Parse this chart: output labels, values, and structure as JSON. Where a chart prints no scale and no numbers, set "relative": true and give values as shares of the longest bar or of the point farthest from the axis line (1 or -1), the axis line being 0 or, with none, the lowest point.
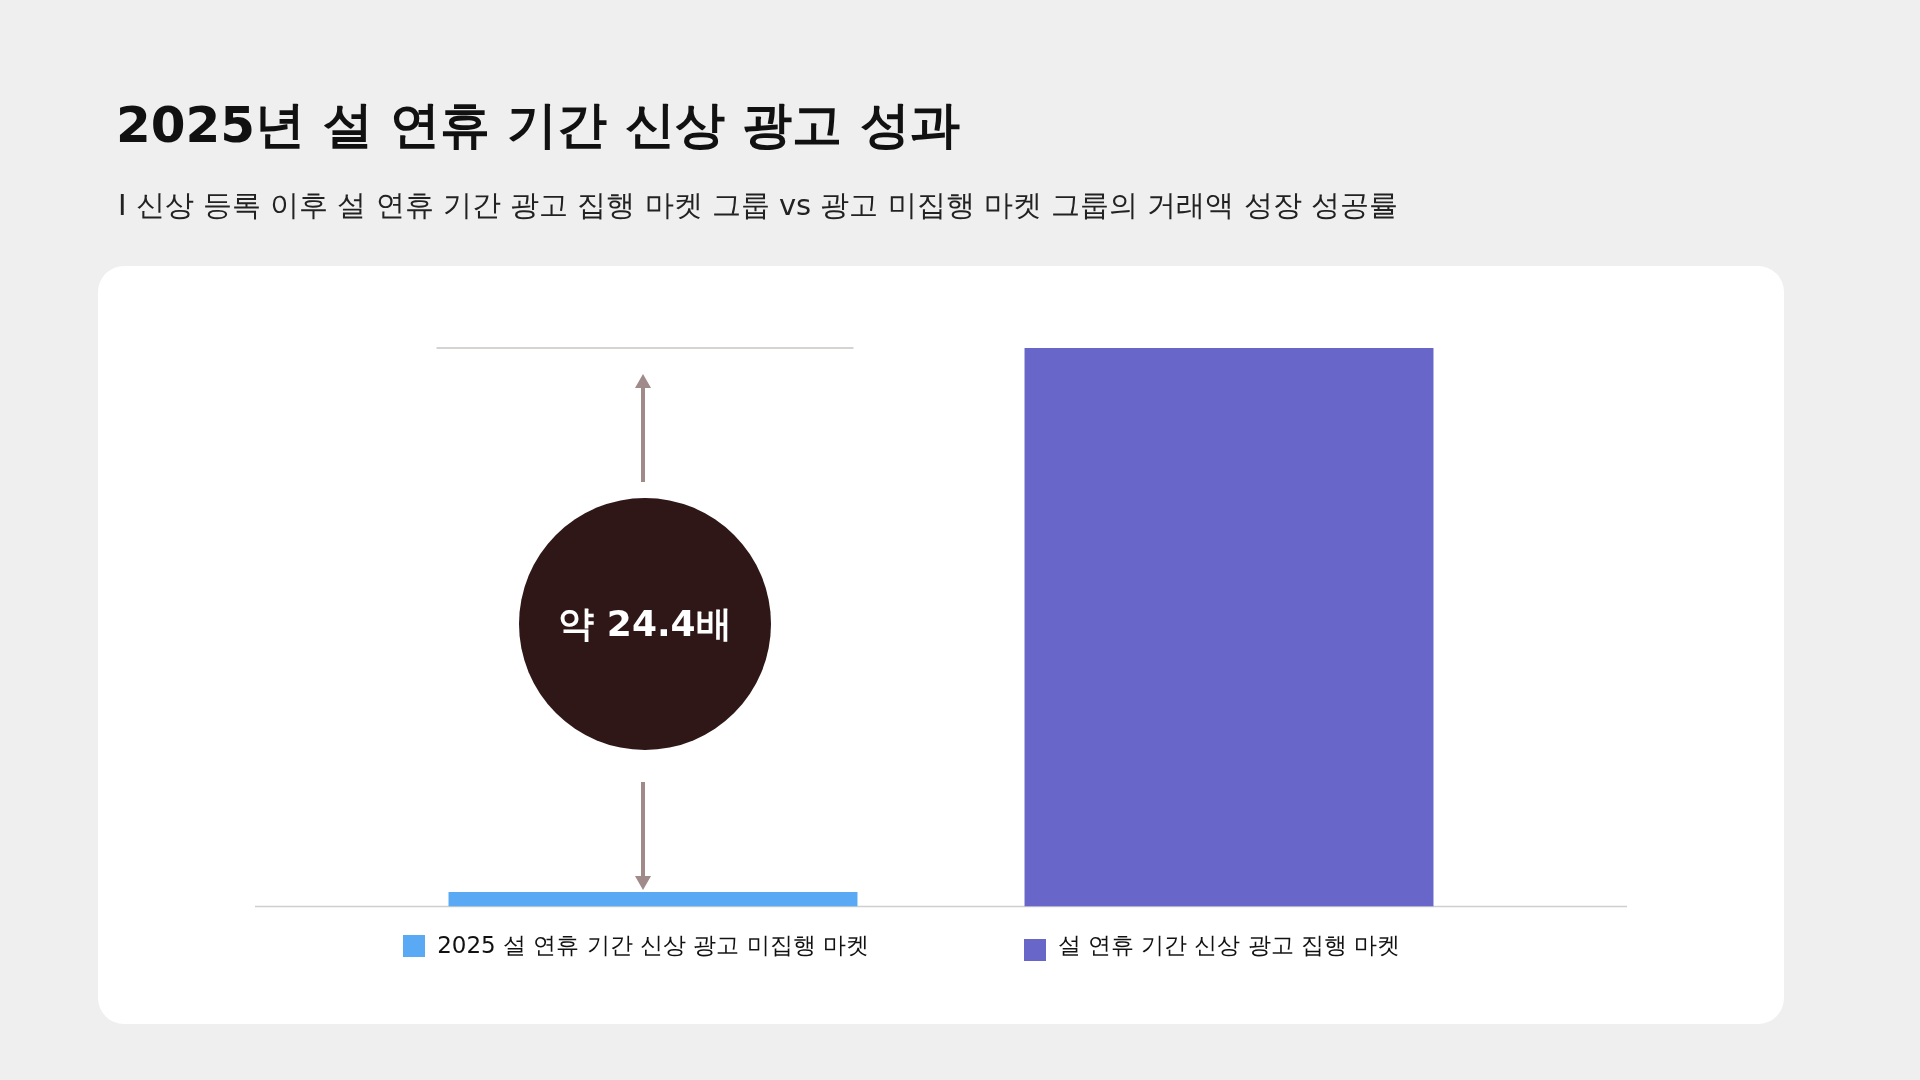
{
  "chart_data": {
    "type": "bar",
    "title": "2025년 설 연휴 기간 신상 광고 성과",
    "subtitle": "I 신상 등록 이후 설 연휴 기간 광고 집행 마켓 그룹 vs 광고 미집행 마켓 그룹의 거래액 성장 성공률",
    "categories": [
      "2025 설 연휴 기간 신상 광고 미집행 마켓",
      "설 연휴 기간 신상 광고 집행 마켓"
    ],
    "relative": true,
    "values": [
      0.026,
      1
    ],
    "colors": [
      "#5aa9f5",
      "#6866c9"
    ],
    "annotations": [
      "약 24.4배"
    ],
    "ref_lines": [
      {
        "axis": "y",
        "value": 1,
        "color": "#c8c4c4"
      }
    ],
    "grid": false
  }
}
